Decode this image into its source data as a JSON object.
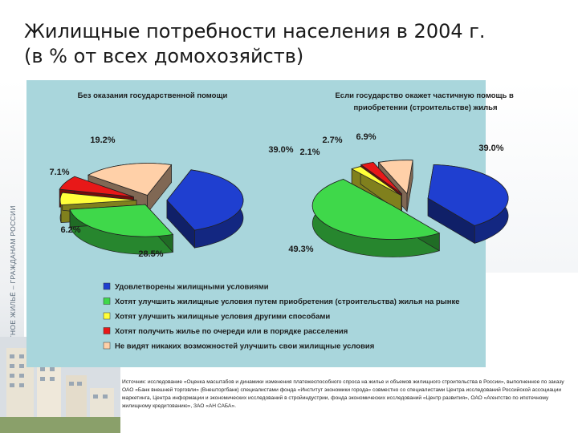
{
  "slide": {
    "title_line1": "Жилищные потребности населения в 2004 г.",
    "title_line2": "(в % от всех домохозяйств)",
    "side_caption": "ДОСТУПНОЕ И КОМФОРТНОЕ ЖИЛЬЁ – ГРАЖДАНАМ РОССИИ",
    "source": "Источник: исследование «Оценка масштабов и динамики изменения платежеспособного спроса на жилье и объемов жилищного строительства в России», выполненное по заказу ОАО «Банк внешней торговли» (Внешторгбанк) специалистами фонда «Институт экономики города» совместно со специалистами Центра исследований Российской ассоциации маркетинга, Центра информации и экономических исследований в стройиндустрии, фонда экономических исследований «Центр развития», ОАО «Агентство по ипотечному жилищному кредитованию», ЗАО «АН САБА»."
  },
  "colors": {
    "panel": "#a9d6dc",
    "blue": "#1f3fd0",
    "green": "#3fd84a",
    "yellow": "#ffff3a",
    "red": "#e81818",
    "peach": "#ffd0a8"
  },
  "chart_data": [
    {
      "type": "pie",
      "title": "Без оказания государственной помощи",
      "labels": [
        "39.0%",
        "28.5%",
        "6.2%",
        "7.1%",
        "19.2%"
      ],
      "values": [
        39.0,
        28.5,
        6.2,
        7.1,
        19.2
      ]
    },
    {
      "type": "pie",
      "title": "Если государство окажет частичную помощь в приобретении (строительстве) жилья",
      "labels": [
        "39.0%",
        "49.3%",
        "2.1%",
        "2.7%",
        "6.9%"
      ],
      "values": [
        39.0,
        49.3,
        2.1,
        2.7,
        6.9
      ]
    }
  ],
  "legend": [
    "Удовлетворены жилищными условиями",
    "Хотят улучшить жилищные условия путем приобретения (строительства) жилья на рынке",
    "Хотят улучшить жилищные условия другими способами",
    "Хотят получить жилье по очереди или в порядке расселения",
    "Не видят никаких возможностей улучшить свои жилищные условия"
  ]
}
